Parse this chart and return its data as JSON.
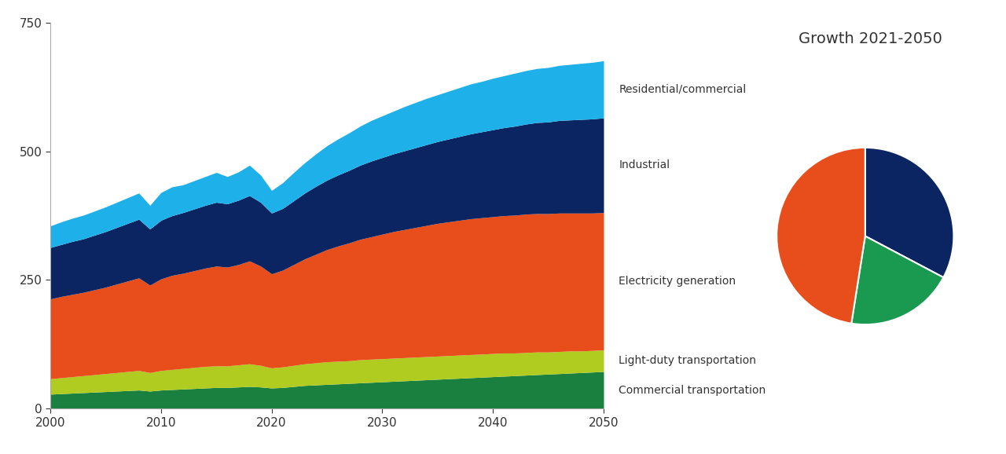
{
  "title_pie": "Growth 2021-2050",
  "years": [
    2000,
    2001,
    2002,
    2003,
    2004,
    2005,
    2006,
    2007,
    2008,
    2009,
    2010,
    2011,
    2012,
    2013,
    2014,
    2015,
    2016,
    2017,
    2018,
    2019,
    2020,
    2021,
    2022,
    2023,
    2024,
    2025,
    2026,
    2027,
    2028,
    2029,
    2030,
    2031,
    2032,
    2033,
    2034,
    2035,
    2036,
    2037,
    2038,
    2039,
    2040,
    2041,
    2042,
    2043,
    2044,
    2045,
    2046,
    2047,
    2048,
    2049,
    2050
  ],
  "commercial_transport": [
    28,
    29,
    30,
    31,
    32,
    33,
    34,
    35,
    36,
    34,
    36,
    37,
    38,
    39,
    40,
    41,
    41,
    42,
    43,
    42,
    40,
    41,
    43,
    45,
    46,
    47,
    48,
    49,
    50,
    51,
    52,
    53,
    54,
    55,
    56,
    57,
    58,
    59,
    60,
    61,
    62,
    63,
    64,
    65,
    66,
    67,
    68,
    69,
    70,
    71,
    72
  ],
  "light_duty": [
    30,
    31,
    32,
    33,
    34,
    35,
    36,
    37,
    38,
    36,
    38,
    39,
    40,
    41,
    42,
    42,
    42,
    43,
    44,
    42,
    39,
    40,
    41,
    42,
    43,
    44,
    44,
    44,
    45,
    45,
    45,
    45,
    45,
    45,
    45,
    45,
    45,
    45,
    45,
    45,
    45,
    45,
    44,
    44,
    44,
    43,
    43,
    43,
    42,
    42,
    42
  ],
  "electricity": [
    155,
    158,
    160,
    162,
    165,
    168,
    172,
    176,
    180,
    170,
    178,
    183,
    185,
    188,
    191,
    194,
    192,
    195,
    200,
    193,
    183,
    188,
    196,
    204,
    211,
    218,
    224,
    229,
    234,
    238,
    242,
    246,
    249,
    252,
    255,
    258,
    260,
    262,
    264,
    265,
    266,
    267,
    268,
    269,
    269,
    269,
    269,
    268,
    268,
    267,
    267
  ],
  "industrial": [
    100,
    101,
    103,
    104,
    106,
    108,
    110,
    112,
    114,
    109,
    114,
    116,
    118,
    120,
    122,
    124,
    123,
    125,
    127,
    124,
    118,
    120,
    124,
    128,
    132,
    135,
    138,
    141,
    144,
    147,
    149,
    151,
    153,
    155,
    157,
    159,
    161,
    163,
    165,
    167,
    169,
    171,
    173,
    175,
    177,
    178,
    180,
    181,
    182,
    183,
    184
  ],
  "residential": [
    42,
    44,
    45,
    46,
    47,
    48,
    49,
    50,
    51,
    46,
    54,
    56,
    54,
    55,
    56,
    58,
    53,
    55,
    59,
    53,
    44,
    50,
    55,
    59,
    63,
    67,
    70,
    73,
    76,
    79,
    81,
    83,
    86,
    88,
    90,
    91,
    93,
    95,
    97,
    98,
    100,
    101,
    103,
    104,
    105,
    106,
    107,
    108,
    109,
    110,
    111
  ],
  "colors": {
    "commercial_transport": "#1a8040",
    "light_duty": "#b0cc20",
    "electricity": "#e84e1b",
    "industrial": "#0b2462",
    "residential": "#1eb0e8"
  },
  "pie_values": [
    184,
    111,
    267
  ],
  "pie_colors": [
    "#0b2462",
    "#1a9a50",
    "#e84e1b"
  ],
  "ylim": [
    0,
    750
  ],
  "xlim": [
    2000,
    2050
  ],
  "yticks": [
    0,
    250,
    500,
    750
  ],
  "xticks": [
    2000,
    2010,
    2020,
    2030,
    2040,
    2050
  ],
  "label_residential": "Residential/commercial",
  "label_industrial": "Industrial",
  "label_electricity": "Electricity generation",
  "label_light_duty": "Light-duty transportation",
  "label_commercial": "Commercial transportation",
  "background_color": "#ffffff"
}
